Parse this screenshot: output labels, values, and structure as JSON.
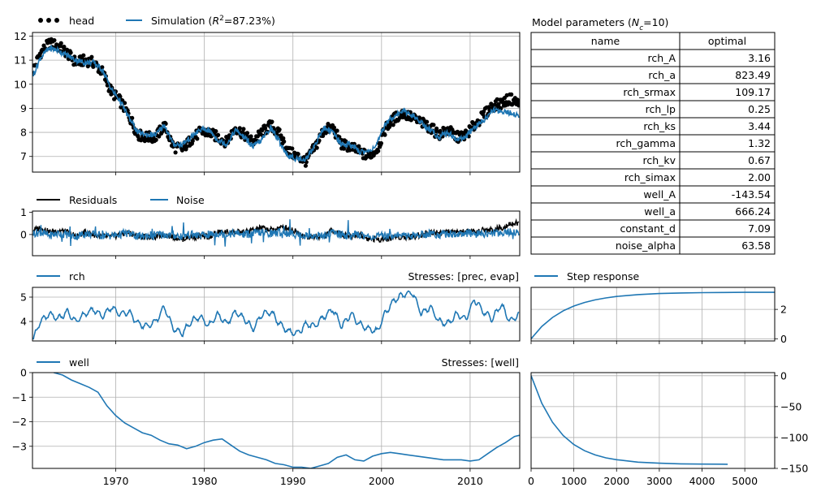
{
  "colors": {
    "observed": "#000000",
    "simulation": "#1f77b4",
    "residuals": "#000000",
    "noise": "#1f77b4",
    "grid": "#b0b0b0"
  },
  "params_table": {
    "title": "Model parameters (N_c=10)",
    "title_prefix": "Model parameters (",
    "title_var": "N",
    "title_sub": "c",
    "title_suffix": "=10)",
    "headers": [
      "name",
      "optimal"
    ],
    "rows": [
      [
        "rch_A",
        "3.16"
      ],
      [
        "rch_a",
        "823.49"
      ],
      [
        "rch_srmax",
        "109.17"
      ],
      [
        "rch_lp",
        "0.25"
      ],
      [
        "rch_ks",
        "3.44"
      ],
      [
        "rch_gamma",
        "1.32"
      ],
      [
        "rch_kv",
        "0.67"
      ],
      [
        "rch_simax",
        "2.00"
      ],
      [
        "well_A",
        "-143.54"
      ],
      [
        "well_a",
        "666.24"
      ],
      [
        "constant_d",
        "7.09"
      ],
      [
        "noise_alpha",
        "63.58"
      ]
    ]
  },
  "chart_data": [
    {
      "type": "line",
      "panel": "head",
      "legend": [
        "head",
        "Simulation (R²=87.23%)"
      ],
      "legend_sim_prefix": "Simulation (",
      "legend_sim_var": "R",
      "legend_sim_sup": "2",
      "legend_sim_suffix": "=87.23%)",
      "legend_placement": "above-left",
      "xlim": [
        1960.6,
        2015.6
      ],
      "ylim": [
        6.35,
        12.15
      ],
      "yticks": [
        7,
        8,
        9,
        10,
        11,
        12
      ],
      "xticks": [
        1970,
        1980,
        1990,
        2000,
        2010
      ],
      "grid": true,
      "series": [
        {
          "name": "head",
          "style": "markers",
          "x": [
            1960.7,
            1961.5,
            1962.5,
            1963.5,
            1964.5,
            1965.5,
            1966.5,
            1967.5,
            1968.5,
            1969.5,
            1970.5,
            1971.5,
            1972.5,
            1973.5,
            1974.5,
            1975.5,
            1976.5,
            1977.5,
            1978.5,
            1979.5,
            1980.5,
            1981.5,
            1982.5,
            1983.5,
            1984.5,
            1985.5,
            1986.5,
            1987.5,
            1988.5,
            1989.5,
            1990.5,
            1991.5,
            1992.5,
            1993.5,
            1994.5,
            1995.5,
            1996.5,
            1997.5,
            1998.5,
            1999.5,
            2000.5,
            2001.5,
            2002.5,
            2003.5,
            2004.5,
            2005.5,
            2006.5,
            2007.5,
            2008.5,
            2009.5,
            2010.5,
            2011.5,
            2012.5,
            2013.5,
            2014.5,
            2015.5
          ],
          "y": [
            10.6,
            11.3,
            11.7,
            11.6,
            11.3,
            10.9,
            11.0,
            10.9,
            10.5,
            9.7,
            9.3,
            8.7,
            7.9,
            7.8,
            7.8,
            8.3,
            7.4,
            7.3,
            7.7,
            8.0,
            8.0,
            7.8,
            7.6,
            8.2,
            7.9,
            7.6,
            8.0,
            8.3,
            7.9,
            7.2,
            7.0,
            6.8,
            7.4,
            8.1,
            8.2,
            7.5,
            7.4,
            7.2,
            7.0,
            7.3,
            8.2,
            8.6,
            8.8,
            8.6,
            8.4,
            8.2,
            7.9,
            8.1,
            7.8,
            7.9,
            8.3,
            8.7,
            9.1,
            9.2,
            9.4,
            9.2
          ]
        },
        {
          "name": "Simulation (R²=87.23%)",
          "style": "line",
          "x": [
            1960.7,
            1961.5,
            1962.5,
            1963.5,
            1964.5,
            1965.5,
            1966.5,
            1967.5,
            1968.5,
            1969.5,
            1970.5,
            1971.5,
            1972.5,
            1973.5,
            1974.5,
            1975.5,
            1976.5,
            1977.5,
            1978.5,
            1979.5,
            1980.5,
            1981.5,
            1982.5,
            1983.5,
            1984.5,
            1985.5,
            1986.5,
            1987.5,
            1988.5,
            1989.5,
            1990.5,
            1991.5,
            1992.5,
            1993.5,
            1994.5,
            1995.5,
            1996.5,
            1997.5,
            1998.5,
            1999.5,
            2000.5,
            2001.5,
            2002.5,
            2003.5,
            2004.5,
            2005.5,
            2006.5,
            2007.5,
            2008.5,
            2009.5,
            2010.5,
            2011.5,
            2012.5,
            2013.5,
            2014.5,
            2015.5
          ],
          "y": [
            10.4,
            11.1,
            11.5,
            11.4,
            11.2,
            11.0,
            10.9,
            10.9,
            10.6,
            9.8,
            9.3,
            8.6,
            8.0,
            7.9,
            7.9,
            8.3,
            7.5,
            7.5,
            7.8,
            8.1,
            8.1,
            7.7,
            7.5,
            8.1,
            7.8,
            7.4,
            7.7,
            8.2,
            7.6,
            7.0,
            6.9,
            6.9,
            7.5,
            8.2,
            8.0,
            7.5,
            7.5,
            7.2,
            7.2,
            7.5,
            8.4,
            8.7,
            8.9,
            8.7,
            8.4,
            8.1,
            7.8,
            8.0,
            7.7,
            7.8,
            8.2,
            8.5,
            8.9,
            8.9,
            8.8,
            8.7
          ]
        }
      ]
    },
    {
      "type": "line",
      "panel": "residuals",
      "legend": [
        "Residuals",
        "Noise"
      ],
      "legend_placement": "above-left",
      "xlim": [
        1960.6,
        2015.6
      ],
      "ylim": [
        -0.95,
        1.05
      ],
      "yticks": [
        0,
        1
      ],
      "grid": false,
      "series": [
        {
          "name": "Residuals",
          "x": [
            1960.7,
            1961.5,
            1962.5,
            1963.5,
            1964.5,
            1965.5,
            1966.5,
            1967.5,
            1968.5,
            1969.5,
            1970.5,
            1971.5,
            1972.5,
            1973.5,
            1974.5,
            1975.5,
            1976.5,
            1977.5,
            1978.5,
            1979.5,
            1980.5,
            1981.5,
            1982.5,
            1983.5,
            1984.5,
            1985.5,
            1986.5,
            1987.5,
            1988.5,
            1989.5,
            1990.5,
            1991.5,
            1992.5,
            1993.5,
            1994.5,
            1995.5,
            1996.5,
            1997.5,
            1998.5,
            1999.5,
            2000.5,
            2001.5,
            2002.5,
            2003.5,
            2004.5,
            2005.5,
            2006.5,
            2007.5,
            2008.5,
            2009.5,
            2010.5,
            2011.5,
            2012.5,
            2013.5,
            2014.5,
            2015.5
          ],
          "y": [
            0.2,
            0.3,
            0.1,
            0.2,
            0.1,
            -0.1,
            0.1,
            0.0,
            -0.1,
            -0.1,
            0.0,
            0.1,
            -0.1,
            -0.1,
            -0.1,
            0.0,
            -0.1,
            -0.2,
            -0.1,
            -0.1,
            -0.1,
            0.1,
            0.1,
            0.1,
            0.1,
            0.2,
            0.3,
            0.2,
            0.3,
            0.3,
            0.1,
            -0.1,
            -0.1,
            -0.1,
            0.2,
            0.0,
            -0.1,
            0.0,
            -0.2,
            -0.2,
            -0.2,
            -0.1,
            -0.1,
            -0.1,
            0.0,
            0.1,
            0.1,
            0.1,
            0.1,
            0.1,
            0.1,
            0.2,
            0.2,
            0.3,
            0.5,
            0.5
          ]
        },
        {
          "name": "Noise",
          "x": [
            1960.7,
            1961.5,
            1962.5,
            1963.5,
            1964.5,
            1965.5,
            1966.5,
            1967.5,
            1968.5,
            1969.5,
            1970.5,
            1971.5,
            1972.5,
            1973.5,
            1974.5,
            1975.5,
            1976.5,
            1977.5,
            1978.5,
            1979.5,
            1980.5,
            1981.5,
            1982.5,
            1983.5,
            1984.5,
            1985.5,
            1986.5,
            1987.5,
            1988.5,
            1989.5,
            1990.5,
            1991.5,
            1992.5,
            1993.5,
            1994.5,
            1995.5,
            1996.5,
            1997.5,
            1998.5,
            1999.5,
            2000.5,
            2001.5,
            2002.5,
            2003.5,
            2004.5,
            2005.5,
            2006.5,
            2007.5,
            2008.5,
            2009.5,
            2010.5,
            2011.5,
            2012.5,
            2013.5,
            2014.5,
            2015.5
          ],
          "y": [
            0.05,
            0.1,
            -0.05,
            0.05,
            0.0,
            -0.1,
            0.05,
            0.0,
            -0.05,
            -0.05,
            0.0,
            0.05,
            -0.1,
            -0.05,
            0.0,
            0.0,
            -0.05,
            -0.05,
            0.0,
            -0.05,
            0.0,
            0.05,
            0.0,
            0.05,
            0.0,
            0.05,
            0.1,
            0.05,
            0.1,
            0.05,
            0.0,
            -0.05,
            -0.05,
            -0.05,
            0.1,
            0.0,
            -0.05,
            0.0,
            -0.1,
            -0.1,
            -0.05,
            0.0,
            -0.05,
            -0.05,
            0.0,
            0.05,
            0.0,
            0.05,
            0.0,
            0.05,
            0.0,
            0.05,
            0.05,
            0.1,
            0.1,
            0.1
          ]
        }
      ]
    },
    {
      "type": "line",
      "panel": "rch",
      "legend": [
        "rch"
      ],
      "label_right": "Stresses: [prec, evap]",
      "legend_placement": "above-left",
      "xlim": [
        1960.6,
        2015.6
      ],
      "ylim": [
        3.2,
        5.4
      ],
      "yticks": [
        4,
        5
      ],
      "grid": true,
      "series": [
        {
          "name": "rch",
          "x": [
            1960.7,
            1961.5,
            1962.5,
            1963.5,
            1964.5,
            1965.5,
            1966.5,
            1967.5,
            1968.5,
            1969.5,
            1970.5,
            1971.5,
            1972.5,
            1973.5,
            1974.5,
            1975.5,
            1976.5,
            1977.5,
            1978.5,
            1979.5,
            1980.5,
            1981.5,
            1982.5,
            1983.5,
            1984.5,
            1985.5,
            1986.5,
            1987.5,
            1988.5,
            1989.5,
            1990.5,
            1991.5,
            1992.5,
            1993.5,
            1994.5,
            1995.5,
            1996.5,
            1997.5,
            1998.5,
            1999.5,
            2000.5,
            2001.5,
            2002.5,
            2003.5,
            2004.5,
            2005.5,
            2006.5,
            2007.5,
            2008.5,
            2009.5,
            2010.5,
            2011.5,
            2012.5,
            2013.5,
            2014.5,
            2015.5
          ],
          "y": [
            3.3,
            4.0,
            4.3,
            4.1,
            4.4,
            4.0,
            4.3,
            4.5,
            4.2,
            4.6,
            4.3,
            4.4,
            3.9,
            3.8,
            4.0,
            4.6,
            3.7,
            3.5,
            4.0,
            4.2,
            3.8,
            4.3,
            3.9,
            4.4,
            4.1,
            3.7,
            4.3,
            4.4,
            3.9,
            3.6,
            3.5,
            3.9,
            3.8,
            4.2,
            4.5,
            3.8,
            4.3,
            3.9,
            3.7,
            3.6,
            4.4,
            4.9,
            5.1,
            5.2,
            4.3,
            4.6,
            4.0,
            3.9,
            4.3,
            4.1,
            4.9,
            4.4,
            4.1,
            4.7,
            4.0,
            4.3
          ]
        }
      ]
    },
    {
      "type": "line",
      "panel": "well",
      "legend": [
        "well"
      ],
      "label_right": "Stresses: [well]",
      "legend_placement": "above-left",
      "xlim": [
        1960.6,
        2015.6
      ],
      "ylim": [
        -3.9,
        0.0
      ],
      "yticks": [
        0,
        -1,
        -2,
        -3
      ],
      "ytick_labels": [
        "0",
        "−1",
        "−2",
        "−3"
      ],
      "xticks": [
        1970,
        1980,
        1990,
        2000,
        2010
      ],
      "grid": true,
      "series": [
        {
          "name": "well",
          "x": [
            1963.0,
            1964.0,
            1965.0,
            1966.0,
            1967.0,
            1968.0,
            1969.0,
            1970.0,
            1971.0,
            1972.0,
            1973.0,
            1974.0,
            1975.0,
            1976.0,
            1977.0,
            1978.0,
            1979.0,
            1980.0,
            1981.0,
            1982.0,
            1983.0,
            1984.0,
            1985.0,
            1986.0,
            1987.0,
            1988.0,
            1989.0,
            1990.0,
            1991.0,
            1992.0,
            1993.0,
            1994.0,
            1995.0,
            1996.0,
            1997.0,
            1998.0,
            1999.0,
            2000.0,
            2001.0,
            2002.0,
            2003.0,
            2004.0,
            2005.0,
            2006.0,
            2007.0,
            2008.0,
            2009.0,
            2010.0,
            2011.0,
            2012.0,
            2013.0,
            2014.0,
            2015.0,
            2015.6
          ],
          "y": [
            0.0,
            -0.1,
            -0.3,
            -0.45,
            -0.6,
            -0.8,
            -1.35,
            -1.75,
            -2.05,
            -2.25,
            -2.45,
            -2.55,
            -2.75,
            -2.9,
            -2.95,
            -3.1,
            -3.0,
            -2.85,
            -2.75,
            -2.7,
            -2.95,
            -3.2,
            -3.35,
            -3.45,
            -3.55,
            -3.7,
            -3.75,
            -3.85,
            -3.85,
            -3.9,
            -3.8,
            -3.7,
            -3.45,
            -3.35,
            -3.55,
            -3.6,
            -3.4,
            -3.3,
            -3.25,
            -3.3,
            -3.35,
            -3.4,
            -3.45,
            -3.5,
            -3.55,
            -3.55,
            -3.55,
            -3.6,
            -3.55,
            -3.3,
            -3.05,
            -2.85,
            -2.6,
            -2.55
          ]
        }
      ]
    },
    {
      "type": "line",
      "panel": "step-response-rch",
      "legend": [
        "Step response"
      ],
      "legend_placement": "above-left",
      "xlim": [
        0,
        5700
      ],
      "ylim": [
        -0.15,
        3.5
      ],
      "yticks": [
        0,
        2
      ],
      "yaxis_side": "right",
      "grid": true,
      "series": [
        {
          "name": "Step response",
          "x": [
            0,
            250,
            500,
            750,
            1000,
            1250,
            1500,
            1750,
            2000,
            2500,
            3000,
            3500,
            4000,
            4500,
            5000,
            5700
          ],
          "y": [
            0.0,
            0.84,
            1.45,
            1.9,
            2.23,
            2.47,
            2.65,
            2.78,
            2.88,
            3.01,
            3.08,
            3.12,
            3.14,
            3.15,
            3.16,
            3.16
          ]
        }
      ]
    },
    {
      "type": "line",
      "panel": "step-response-well",
      "xlim": [
        0,
        5700
      ],
      "ylim": [
        -150,
        5
      ],
      "yticks": [
        0,
        -50,
        -100,
        -150
      ],
      "ytick_labels": [
        "0",
        "−50",
        "−100",
        "−150"
      ],
      "xticks": [
        0,
        1000,
        2000,
        3000,
        4000,
        5000
      ],
      "yaxis_side": "right",
      "grid": true,
      "series": [
        {
          "x": [
            0,
            250,
            500,
            750,
            1000,
            1250,
            1500,
            1750,
            2000,
            2500,
            3000,
            3500,
            4000,
            4600
          ],
          "y": [
            0,
            -44.6,
            -75.2,
            -96.8,
            -111.4,
            -121.4,
            -128.2,
            -132.9,
            -136.0,
            -139.9,
            -141.6,
            -142.6,
            -143.1,
            -143.3
          ]
        }
      ]
    }
  ]
}
